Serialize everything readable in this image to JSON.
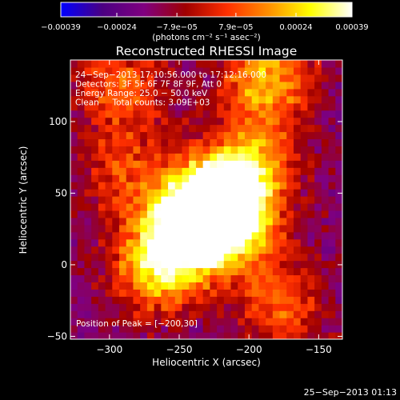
{
  "chart_data": {
    "type": "heatmap",
    "title": "Reconstructed RHESSI Image",
    "xlabel": "Heliocentric X (arcsec)",
    "ylabel": "Heliocentric Y (arcsec)",
    "xlim": [
      -328,
      -133
    ],
    "ylim": [
      -52,
      143
    ],
    "x_ticks": [
      -300,
      -250,
      -200,
      -150
    ],
    "x_tick_labels": [
      "−300",
      "−250",
      "−200",
      "−150"
    ],
    "y_ticks": [
      -50,
      0,
      50,
      100
    ],
    "y_tick_labels": [
      "−50",
      "0",
      "50",
      "100"
    ],
    "colorbar": {
      "range": [
        -0.00039,
        0.00039
      ],
      "ticks": [
        -0.00039,
        -0.00024,
        -7.9e-05,
        7.9e-05,
        0.00024,
        0.00039
      ],
      "tick_labels": [
        "−0.00039",
        "−0.00024",
        "−7.9e−05",
        "7.9e−05",
        "0.00024",
        "0.00039"
      ],
      "units": "(photons cm⁻² s⁻¹ asec⁻²)",
      "colormap": [
        "#0000ff",
        "#4b0082",
        "#800080",
        "#a00000",
        "#ff3000",
        "#ff9000",
        "#ffff00",
        "#ffffff"
      ]
    },
    "annotations": [
      "24−Sep−2013 17:10:56.000 to 17:12:16.000",
      "Detectors: 3F 5F 6F 7F 8F 9F, Att 0",
      "Energy Range: 25.0 − 50.0 keV",
      "Clean     Total counts: 3.09E+03"
    ],
    "peak_label": "Position of Peak = [−200,30]",
    "peak": [
      -200,
      30
    ],
    "bright_regions": [
      {
        "x": -232,
        "y": 40,
        "level": 1.0
      },
      {
        "x": -215,
        "y": 30,
        "level": 0.9
      },
      {
        "x": -250,
        "y": 18,
        "level": 0.7
      },
      {
        "x": -270,
        "y": -5,
        "level": 0.6
      },
      {
        "x": -200,
        "y": 70,
        "level": 0.55
      },
      {
        "x": -190,
        "y": 130,
        "level": 0.65
      },
      {
        "x": -295,
        "y": 120,
        "level": 0.45
      },
      {
        "x": -180,
        "y": -30,
        "level": 0.45
      },
      {
        "x": -290,
        "y": 60,
        "level": 0.35
      }
    ],
    "grid": false
  },
  "footer": {
    "timestamp": "25−Sep−2013 01:13"
  },
  "colors": {
    "background": "#000000",
    "text": "#ffffff"
  }
}
